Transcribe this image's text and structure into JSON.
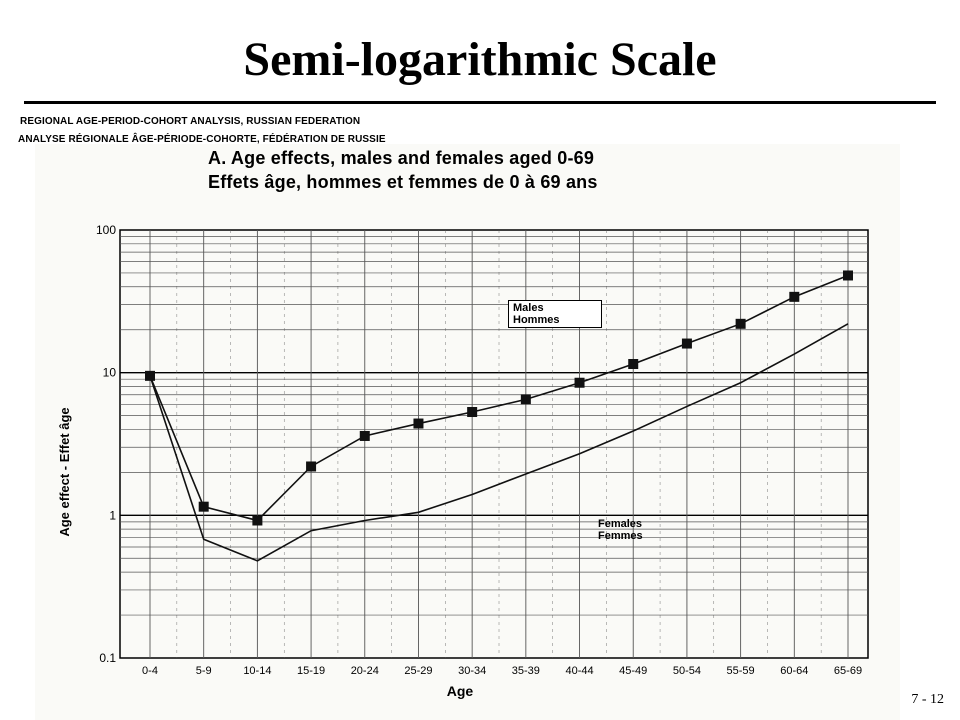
{
  "slide": {
    "title": "Semi-logarithmic Scale",
    "page_number": "7 - 12"
  },
  "source": {
    "line1": "REGIONAL AGE-PERIOD-COHORT ANALYSIS, RUSSIAN FEDERATION",
    "line2": "ANALYSE RÉGIONALE ÂGE-PÉRIODE-COHORTE, FÉDÉRATION DE RUSSIE"
  },
  "chart_data": {
    "type": "line",
    "title": "A. Age effects, males and females aged 0-69",
    "subtitle": "Effets âge, hommes et femmes de 0 à 69 ans",
    "xlabel": "Age",
    "ylabel": "Age effect - Effet âge",
    "yscale": "log",
    "ylim": [
      0.1,
      100
    ],
    "yticks": [
      "0.1",
      "1",
      "10",
      "100"
    ],
    "grid": true,
    "categories": [
      "0-4",
      "5-9",
      "10-14",
      "15-19",
      "20-24",
      "25-29",
      "30-34",
      "35-39",
      "40-44",
      "45-49",
      "50-54",
      "55-59",
      "60-64",
      "65-69"
    ],
    "series": [
      {
        "name": "Males\nHommes",
        "values": [
          9.5,
          1.15,
          0.92,
          2.2,
          3.6,
          4.4,
          5.3,
          6.5,
          8.5,
          11.5,
          16,
          22,
          34,
          48
        ],
        "markers": true
      },
      {
        "name": "Females\nFemmes",
        "values": [
          9.5,
          0.68,
          0.48,
          0.78,
          0.92,
          1.05,
          1.4,
          1.95,
          2.7,
          3.9,
          5.8,
          8.5,
          13.5,
          22
        ],
        "markers": false
      }
    ],
    "colors": {
      "line": "#111111",
      "grid": "#555555"
    }
  }
}
